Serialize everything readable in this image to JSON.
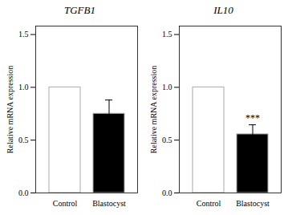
{
  "chart_data": [
    {
      "type": "bar",
      "title": "TGFB1",
      "categories": [
        "Control",
        "Blastocyst"
      ],
      "values": [
        1.0,
        0.75
      ],
      "errors": [
        0.0,
        0.13
      ],
      "colors": [
        "white",
        "black"
      ],
      "ylabel": "Relative mRNA expression",
      "ylim": [
        0.0,
        1.58
      ],
      "yticks": [
        {
          "value": 0,
          "label": "0.0"
        },
        0.5,
        {
          "value": 1,
          "label": "1.0"
        },
        1.5
      ],
      "grid": false
    },
    {
      "type": "bar",
      "title": "IL10",
      "categories": [
        "Control",
        "Blastocyst"
      ],
      "values": [
        1.0,
        0.555
      ],
      "errors": [
        0.0,
        0.09
      ],
      "colors": [
        "white",
        "black"
      ],
      "ylabel": "Relative mRNA expression",
      "ylim": [
        0.0,
        1.58
      ],
      "yticks": [
        {
          "value": 0,
          "label": "0.0"
        },
        0.5,
        {
          "value": 1,
          "label": "1.0"
        },
        1.5
      ],
      "grid": false,
      "annotations": [
        {
          "text": "***",
          "category": "Blastocyst"
        }
      ]
    }
  ]
}
